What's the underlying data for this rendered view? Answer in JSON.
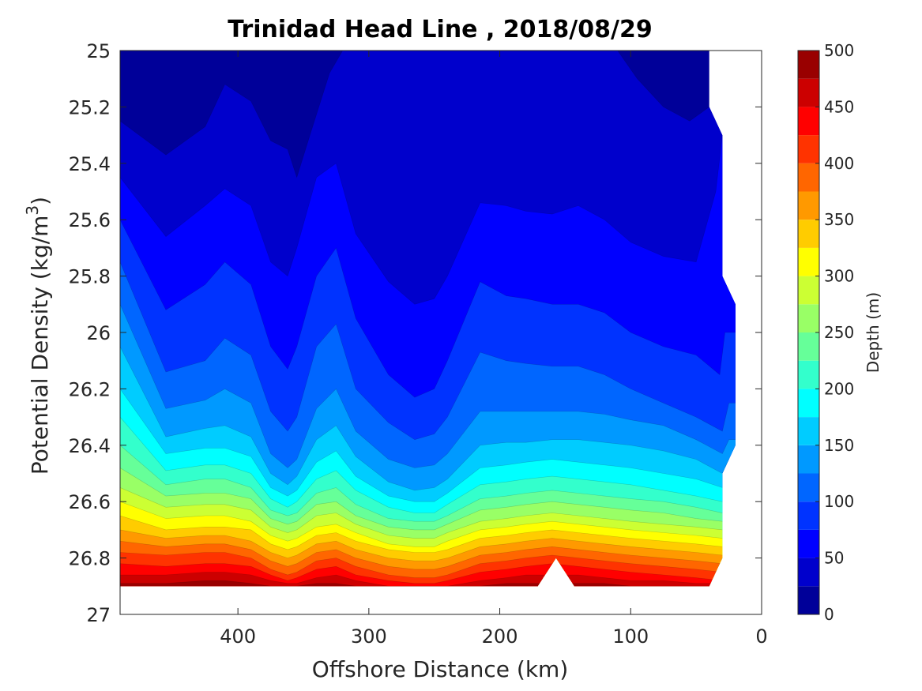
{
  "chart_data": {
    "type": "contourf",
    "title": "Trinidad Head Line , 2018/08/29",
    "xlabel": "Offshore Distance (km)",
    "ylabel_main": "Potential Density (kg/m",
    "ylabel_sup": "3",
    "ylabel_end": ")",
    "xlim": [
      490,
      0
    ],
    "ylim": [
      25,
      27
    ],
    "x_reversed": true,
    "y_reversed": true,
    "xticks": [
      400,
      300,
      200,
      100,
      0
    ],
    "yticks": [
      25,
      25.2,
      25.4,
      25.6,
      25.8,
      26,
      26.2,
      26.4,
      26.6,
      26.8,
      27
    ],
    "ytick_labels": [
      "25",
      "25.2",
      "25.4",
      "25.6",
      "25.8",
      "26",
      "26.2",
      "26.4",
      "26.6",
      "26.8",
      "27"
    ],
    "colorbar": {
      "label": "Depth (m)",
      "min": 0,
      "max": 500,
      "step": 25,
      "ticks": [
        0,
        50,
        100,
        150,
        200,
        250,
        300,
        350,
        400,
        450,
        500
      ],
      "colormap": "jet"
    },
    "grid": false,
    "levels": [
      {
        "depth": 25,
        "x": [
          490,
          455,
          425,
          410,
          390,
          375,
          362,
          355,
          345,
          330,
          320,
          305,
          275,
          265,
          255,
          245,
          215,
          195,
          170,
          140,
          110,
          95,
          75,
          55,
          40
        ],
        "y": [
          25.25,
          25.37,
          25.27,
          25.12,
          25.18,
          25.32,
          25.35,
          25.45,
          25.3,
          25.08,
          25.0,
          25.0,
          25.0,
          25.0,
          25.0,
          25.0,
          25.0,
          25.0,
          25.0,
          25.0,
          25.0,
          25.1,
          25.2,
          25.25,
          25.2
        ]
      },
      {
        "depth": 50,
        "x": [
          490,
          455,
          425,
          410,
          390,
          375,
          362,
          355,
          340,
          325,
          310,
          285,
          265,
          250,
          240,
          215,
          195,
          180,
          160,
          140,
          120,
          100,
          75,
          50,
          35,
          30
        ],
        "y": [
          25.45,
          25.66,
          25.55,
          25.49,
          25.55,
          25.75,
          25.8,
          25.7,
          25.45,
          25.4,
          25.65,
          25.82,
          25.9,
          25.88,
          25.8,
          25.54,
          25.55,
          25.57,
          25.58,
          25.55,
          25.6,
          25.68,
          25.73,
          25.75,
          25.5,
          25.3
        ]
      },
      {
        "depth": 75,
        "x": [
          490,
          455,
          425,
          410,
          390,
          375,
          362,
          355,
          340,
          325,
          310,
          285,
          265,
          250,
          240,
          215,
          195,
          180,
          160,
          140,
          120,
          100,
          75,
          50,
          32,
          28
        ],
        "y": [
          25.6,
          25.92,
          25.83,
          25.75,
          25.83,
          26.05,
          26.13,
          26.05,
          25.8,
          25.7,
          25.95,
          26.15,
          26.23,
          26.2,
          26.1,
          25.82,
          25.87,
          25.88,
          25.9,
          25.9,
          25.93,
          26.0,
          26.05,
          26.08,
          26.15,
          26.0
        ]
      },
      {
        "depth": 100,
        "x": [
          490,
          455,
          425,
          410,
          390,
          375,
          362,
          355,
          340,
          325,
          310,
          285,
          265,
          250,
          240,
          215,
          195,
          180,
          160,
          140,
          120,
          100,
          75,
          50,
          30,
          25
        ],
        "y": [
          25.75,
          26.14,
          26.1,
          26.02,
          26.08,
          26.28,
          26.35,
          26.3,
          26.05,
          25.97,
          26.2,
          26.32,
          26.38,
          26.36,
          26.3,
          26.07,
          26.1,
          26.11,
          26.12,
          26.12,
          26.15,
          26.2,
          26.25,
          26.3,
          26.35,
          26.25
        ]
      },
      {
        "depth": 125,
        "x": [
          490,
          455,
          425,
          410,
          390,
          375,
          362,
          355,
          340,
          325,
          310,
          285,
          265,
          250,
          240,
          215,
          195,
          180,
          160,
          140,
          120,
          100,
          75,
          50,
          30,
          25
        ],
        "y": [
          25.9,
          26.27,
          26.24,
          26.2,
          26.25,
          26.43,
          26.48,
          26.45,
          26.27,
          26.2,
          26.35,
          26.45,
          26.48,
          26.47,
          26.43,
          26.28,
          26.28,
          26.28,
          26.28,
          26.28,
          26.29,
          26.31,
          26.33,
          26.38,
          26.43,
          26.38
        ]
      },
      {
        "depth": 150,
        "x": [
          490,
          455,
          425,
          410,
          390,
          375,
          362,
          355,
          340,
          325,
          310,
          285,
          265,
          250,
          240,
          215,
          195,
          180,
          160,
          140,
          120,
          100,
          75,
          50,
          30,
          25
        ],
        "y": [
          26.05,
          26.37,
          26.34,
          26.33,
          26.37,
          26.5,
          26.54,
          26.51,
          26.38,
          26.33,
          26.44,
          26.53,
          26.56,
          26.55,
          26.52,
          26.4,
          26.39,
          26.39,
          26.38,
          26.38,
          26.39,
          26.4,
          26.42,
          26.45,
          26.5,
          26.45
        ]
      },
      {
        "depth": 175,
        "x": [
          490,
          455,
          425,
          410,
          390,
          375,
          362,
          355,
          340,
          325,
          310,
          285,
          265,
          250,
          240,
          215,
          195,
          180,
          160,
          140,
          120,
          100,
          75,
          50,
          30,
          25
        ],
        "y": [
          26.2,
          26.43,
          26.41,
          26.41,
          26.44,
          26.55,
          26.58,
          26.56,
          26.46,
          26.42,
          26.51,
          26.58,
          26.6,
          26.6,
          26.57,
          26.48,
          26.47,
          26.46,
          26.45,
          26.46,
          26.47,
          26.48,
          26.5,
          26.52,
          26.55,
          26.52
        ]
      },
      {
        "depth": 200,
        "x": [
          490,
          455,
          425,
          410,
          390,
          375,
          362,
          355,
          340,
          325,
          310,
          285,
          265,
          250,
          240,
          215,
          195,
          180,
          160,
          140,
          120,
          100,
          75,
          50,
          30,
          25
        ],
        "y": [
          26.3,
          26.49,
          26.47,
          26.47,
          26.5,
          26.59,
          26.62,
          26.6,
          26.52,
          26.49,
          26.56,
          26.62,
          26.64,
          26.64,
          26.61,
          26.54,
          26.53,
          26.52,
          26.51,
          26.52,
          26.53,
          26.54,
          26.56,
          26.58,
          26.6,
          26.58
        ]
      },
      {
        "depth": 225,
        "x": [
          490,
          455,
          425,
          410,
          390,
          375,
          362,
          355,
          340,
          325,
          310,
          285,
          265,
          250,
          240,
          215,
          195,
          180,
          160,
          140,
          120,
          100,
          75,
          50,
          30,
          25
        ],
        "y": [
          26.4,
          26.54,
          26.52,
          26.52,
          26.55,
          26.63,
          26.65,
          26.64,
          26.57,
          26.55,
          26.61,
          26.66,
          26.67,
          26.67,
          26.65,
          26.59,
          26.58,
          26.57,
          26.56,
          26.57,
          26.58,
          26.59,
          26.6,
          26.62,
          26.64,
          26.62
        ]
      },
      {
        "depth": 250,
        "x": [
          490,
          455,
          425,
          410,
          390,
          375,
          362,
          355,
          340,
          325,
          310,
          285,
          265,
          250,
          240,
          215,
          195,
          180,
          160,
          140,
          120,
          100,
          75,
          50,
          30,
          25
        ],
        "y": [
          26.48,
          26.58,
          26.57,
          26.57,
          26.59,
          26.66,
          26.68,
          26.67,
          26.61,
          26.6,
          26.65,
          26.69,
          26.7,
          26.7,
          26.68,
          26.63,
          26.62,
          26.61,
          26.6,
          26.61,
          26.62,
          26.63,
          26.64,
          26.66,
          26.67,
          26.66
        ]
      },
      {
        "depth": 275,
        "x": [
          490,
          455,
          425,
          410,
          390,
          375,
          362,
          355,
          340,
          325,
          310,
          285,
          265,
          250,
          240,
          215,
          195,
          180,
          160,
          140,
          120,
          100,
          75,
          50,
          30,
          25
        ],
        "y": [
          26.55,
          26.62,
          26.61,
          26.61,
          26.63,
          26.69,
          26.71,
          26.7,
          26.65,
          26.64,
          26.68,
          26.72,
          26.73,
          26.73,
          26.71,
          26.67,
          26.66,
          26.65,
          26.64,
          26.65,
          26.66,
          26.67,
          26.68,
          26.69,
          26.7,
          26.69
        ]
      },
      {
        "depth": 300,
        "x": [
          490,
          455,
          425,
          410,
          390,
          375,
          362,
          355,
          340,
          325,
          310,
          285,
          265,
          250,
          240,
          215,
          195,
          180,
          160,
          140,
          120,
          100,
          75,
          50,
          30,
          25
        ],
        "y": [
          26.6,
          26.66,
          26.65,
          26.65,
          26.67,
          26.72,
          26.74,
          26.73,
          26.69,
          26.68,
          26.71,
          26.75,
          26.76,
          26.76,
          26.74,
          26.7,
          26.69,
          26.68,
          26.67,
          26.68,
          26.69,
          26.7,
          26.71,
          26.72,
          26.73,
          26.72
        ]
      },
      {
        "depth": 325,
        "x": [
          490,
          455,
          425,
          410,
          390,
          375,
          362,
          355,
          340,
          325,
          310,
          285,
          265,
          250,
          240,
          215,
          195,
          180,
          160,
          140,
          120,
          100,
          75,
          50,
          30,
          25
        ],
        "y": [
          26.65,
          26.7,
          26.69,
          26.69,
          26.7,
          26.75,
          26.77,
          26.76,
          26.72,
          26.71,
          26.74,
          26.77,
          26.78,
          26.78,
          26.77,
          26.73,
          26.72,
          26.71,
          26.7,
          26.71,
          26.72,
          26.73,
          26.74,
          26.75,
          26.76,
          26.75
        ]
      },
      {
        "depth": 350,
        "x": [
          490,
          455,
          425,
          410,
          390,
          375,
          362,
          355,
          340,
          325,
          310,
          285,
          265,
          250,
          240,
          215,
          195,
          180,
          160,
          140,
          120,
          100,
          75,
          50,
          30,
          25
        ],
        "y": [
          26.7,
          26.73,
          26.72,
          26.72,
          26.74,
          26.78,
          26.8,
          26.79,
          26.75,
          26.74,
          26.77,
          26.8,
          26.81,
          26.81,
          26.8,
          26.76,
          26.75,
          26.74,
          26.73,
          26.74,
          26.75,
          26.76,
          26.77,
          26.78,
          26.79,
          26.78
        ]
      },
      {
        "depth": 375,
        "x": [
          490,
          455,
          425,
          410,
          390,
          375,
          362,
          355,
          340,
          325,
          310,
          285,
          265,
          250,
          240,
          215,
          195,
          180,
          160,
          140,
          120,
          100,
          75,
          50,
          30,
          25
        ],
        "y": [
          26.74,
          26.76,
          26.75,
          26.75,
          26.77,
          26.81,
          26.83,
          26.82,
          26.78,
          26.77,
          26.8,
          26.83,
          26.84,
          26.84,
          26.83,
          26.79,
          26.78,
          26.77,
          26.76,
          26.77,
          26.78,
          26.79,
          26.8,
          26.81,
          26.82,
          26.81
        ]
      },
      {
        "depth": 400,
        "x": [
          490,
          455,
          425,
          410,
          390,
          375,
          362,
          355,
          340,
          325,
          310,
          285,
          265,
          250,
          240,
          215,
          195,
          180,
          160,
          140,
          120,
          100,
          75,
          50,
          30,
          25
        ],
        "y": [
          26.78,
          26.79,
          26.78,
          26.78,
          26.8,
          26.84,
          26.86,
          26.85,
          26.81,
          26.8,
          26.83,
          26.86,
          26.87,
          26.87,
          26.86,
          26.82,
          26.81,
          26.8,
          26.79,
          26.8,
          26.81,
          26.82,
          26.83,
          26.84,
          26.85,
          26.84
        ]
      },
      {
        "depth": 425,
        "x": [
          490,
          455,
          425,
          410,
          390,
          375,
          362,
          355,
          340,
          325,
          310,
          285,
          265,
          250,
          240,
          215,
          195,
          180,
          160,
          140,
          120,
          100,
          75,
          50,
          30,
          25
        ],
        "y": [
          26.82,
          26.83,
          26.82,
          26.82,
          26.83,
          26.86,
          26.88,
          26.87,
          26.84,
          26.83,
          26.86,
          26.88,
          26.89,
          26.89,
          26.88,
          26.85,
          26.84,
          26.83,
          26.82,
          26.83,
          26.84,
          26.85,
          26.86,
          26.87,
          26.88,
          26.87
        ]
      },
      {
        "depth": 450,
        "x": [
          490,
          455,
          425,
          410,
          390,
          375,
          362,
          355,
          340,
          325,
          310,
          285,
          265,
          250,
          240,
          215,
          195,
          180,
          160,
          140,
          120,
          100,
          75,
          50,
          30,
          25
        ],
        "y": [
          26.86,
          26.86,
          26.85,
          26.85,
          26.86,
          26.88,
          26.89,
          26.89,
          26.87,
          26.86,
          26.88,
          26.9,
          26.9,
          26.9,
          26.9,
          26.88,
          26.87,
          26.86,
          26.86,
          26.86,
          26.87,
          26.88,
          26.88,
          26.89,
          26.89,
          26.89
        ]
      },
      {
        "depth": 475,
        "x": [
          490,
          455,
          425,
          410,
          390,
          375,
          362,
          355,
          340,
          325,
          310,
          285,
          265,
          250,
          240,
          215,
          195,
          180,
          160,
          140,
          120,
          100,
          75,
          50,
          30,
          25
        ],
        "y": [
          26.89,
          26.89,
          26.88,
          26.88,
          26.89,
          26.9,
          26.9,
          26.9,
          26.89,
          26.89,
          26.9,
          26.9,
          26.9,
          26.9,
          26.9,
          26.9,
          26.89,
          26.89,
          26.89,
          26.89,
          26.89,
          26.9,
          26.9,
          26.9,
          26.9,
          26.9
        ]
      }
    ],
    "data_domain": {
      "top_right": [
        [
          40,
          25.0
        ],
        [
          40,
          25.2
        ],
        [
          30,
          25.3
        ],
        [
          30,
          25.8
        ],
        [
          20,
          25.9
        ],
        [
          20,
          26.4
        ],
        [
          30,
          26.5
        ],
        [
          30,
          26.8
        ],
        [
          40,
          26.9
        ]
      ],
      "bottom": [
        [
          40,
          26.9
        ],
        [
          143,
          26.9
        ],
        [
          157,
          26.8
        ],
        [
          171,
          26.9
        ],
        [
          490,
          26.9
        ]
      ]
    }
  }
}
